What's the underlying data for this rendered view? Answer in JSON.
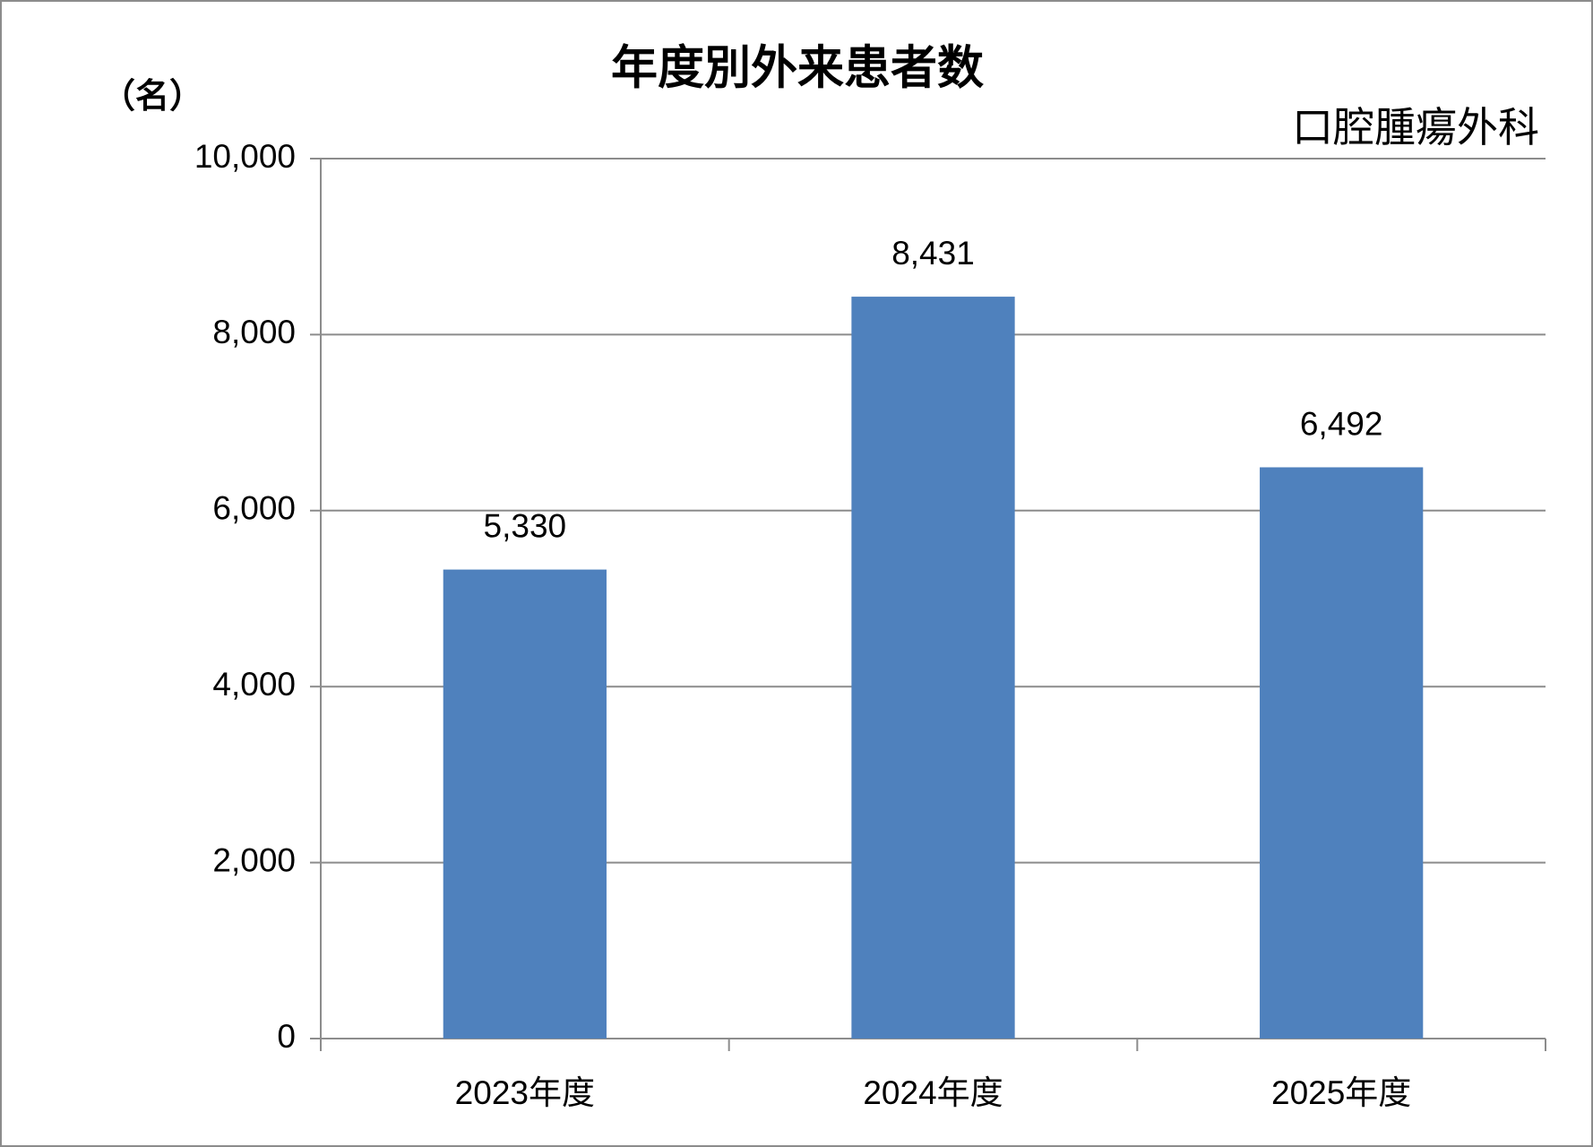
{
  "chart_data": {
    "type": "bar",
    "title": "年度別外来患者数",
    "y_unit": "（名）",
    "subtitle": "口腔腫瘍外科",
    "categories": [
      "2023年度",
      "2024年度",
      "2025年度"
    ],
    "values": [
      5330,
      8431,
      6492
    ],
    "value_labels": [
      "5,330",
      "8,431",
      "6,492"
    ],
    "color": "#4f81bd",
    "ylim": [
      0,
      10000
    ],
    "yticks": [
      0,
      {
        "value": 2000,
        "label": "2,000"
      },
      {
        "value": 4000,
        "label": "4,000"
      },
      {
        "value": 6000,
        "label": "6,000"
      },
      {
        "value": 8000,
        "label": "8,000"
      },
      {
        "value": 10000,
        "label": "10,000"
      }
    ],
    "grid": true
  }
}
